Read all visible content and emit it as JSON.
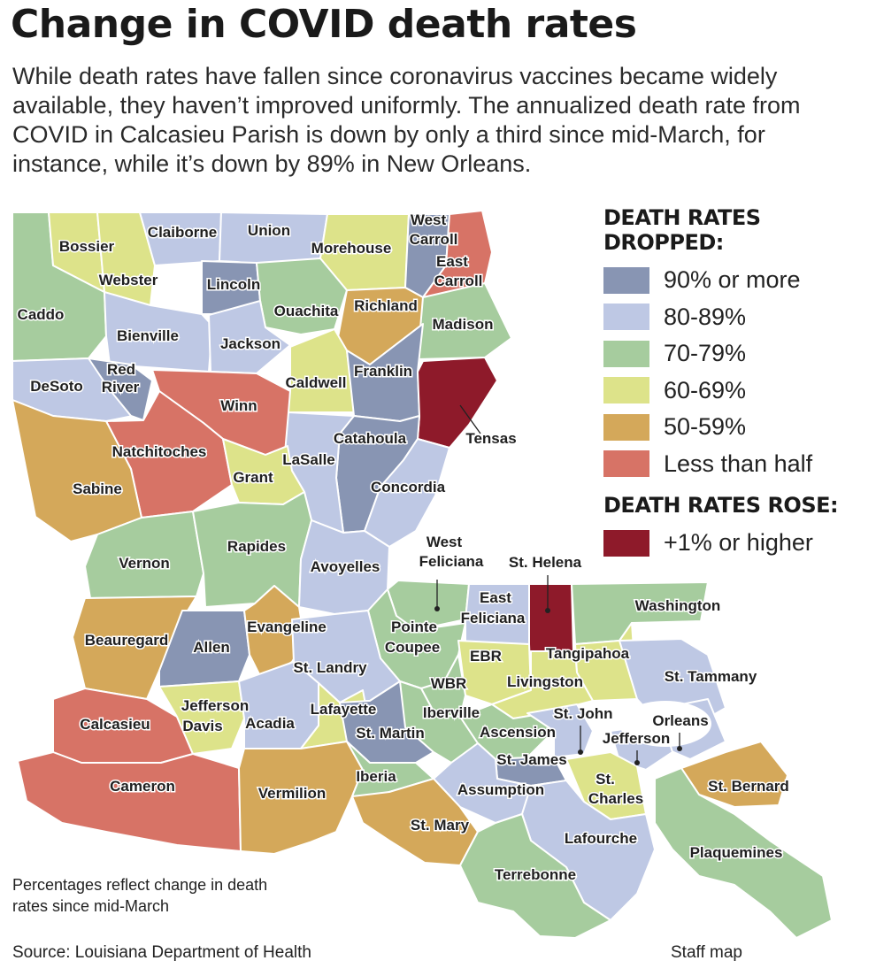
{
  "header": {
    "title": "Change in COVID death rates",
    "subtitle": "While death rates have fallen since coronavirus vaccines became widely available, they haven’t improved uniformly. The annualized death rate from COVID in Calcasieu Parish is down by only a third since mid-March, for instance, while it’s down by 89% in New Orleans."
  },
  "legend": {
    "dropped_title": "DEATH RATES DROPPED:",
    "dropped": [
      {
        "key": "90",
        "label": "90% or more",
        "color": "#8895b3"
      },
      {
        "key": "80",
        "label": "80-89%",
        "color": "#bec8e4"
      },
      {
        "key": "70",
        "label": "70-79%",
        "color": "#a6cc9e"
      },
      {
        "key": "60",
        "label": "60-69%",
        "color": "#dde38a"
      },
      {
        "key": "50",
        "label": "50-59%",
        "color": "#d4a85a"
      },
      {
        "key": "half",
        "label": "Less than half",
        "color": "#d77366"
      }
    ],
    "rose_title": "DEATH RATES ROSE:",
    "rose": [
      {
        "key": "rose",
        "label": "+1% or higher",
        "color": "#8e1a2a"
      }
    ]
  },
  "parishes": [
    {
      "id": "caddo",
      "label": "Caddo",
      "category": "70"
    },
    {
      "id": "bossier",
      "label": "Bossier",
      "category": "60"
    },
    {
      "id": "webster",
      "label": "Webster",
      "category": "60"
    },
    {
      "id": "claiborne",
      "label": "Claiborne",
      "category": "80"
    },
    {
      "id": "union",
      "label": "Union",
      "category": "80"
    },
    {
      "id": "morehouse",
      "label": "Morehouse",
      "category": "60"
    },
    {
      "id": "west-carroll",
      "label": "West Carroll",
      "category": "90"
    },
    {
      "id": "east-carroll",
      "label": "East Carroll",
      "category": "half"
    },
    {
      "id": "lincoln",
      "label": "Lincoln",
      "category": "90"
    },
    {
      "id": "ouachita",
      "label": "Ouachita",
      "category": "70"
    },
    {
      "id": "richland",
      "label": "Richland",
      "category": "50"
    },
    {
      "id": "madison",
      "label": "Madison",
      "category": "70"
    },
    {
      "id": "bienville",
      "label": "Bienville",
      "category": "80"
    },
    {
      "id": "jackson",
      "label": "Jackson",
      "category": "80"
    },
    {
      "id": "desoto",
      "label": "DeSoto",
      "category": "80"
    },
    {
      "id": "red-river",
      "label": "Red River",
      "category": "90"
    },
    {
      "id": "winn",
      "label": "Winn",
      "category": "half"
    },
    {
      "id": "caldwell",
      "label": "Caldwell",
      "category": "60"
    },
    {
      "id": "franklin",
      "label": "Franklin",
      "category": "90"
    },
    {
      "id": "tensas",
      "label": "Tensas",
      "category": "rose"
    },
    {
      "id": "natchitoches",
      "label": "Natchitoches",
      "category": "half"
    },
    {
      "id": "catahoula",
      "label": "Catahoula",
      "category": "90"
    },
    {
      "id": "lasalle",
      "label": "LaSalle",
      "category": "80"
    },
    {
      "id": "grant",
      "label": "Grant",
      "category": "60"
    },
    {
      "id": "concordia",
      "label": "Concordia",
      "category": "80"
    },
    {
      "id": "sabine",
      "label": "Sabine",
      "category": "50"
    },
    {
      "id": "vernon",
      "label": "Vernon",
      "category": "70"
    },
    {
      "id": "rapides",
      "label": "Rapides",
      "category": "70"
    },
    {
      "id": "avoyelles",
      "label": "Avoyelles",
      "category": "80"
    },
    {
      "id": "west-feliciana",
      "label": "West Feliciana",
      "category": "70"
    },
    {
      "id": "east-feliciana",
      "label": "East Feliciana",
      "category": "80"
    },
    {
      "id": "st-helena",
      "label": "St. Helena",
      "category": "rose"
    },
    {
      "id": "washington",
      "label": "Washington",
      "category": "70"
    },
    {
      "id": "beauregard",
      "label": "Beauregard",
      "category": "50"
    },
    {
      "id": "allen",
      "label": "Allen",
      "category": "90"
    },
    {
      "id": "evangeline",
      "label": "Evangeline",
      "category": "50"
    },
    {
      "id": "pointe-coupee",
      "label": "Pointe Coupee",
      "category": "70"
    },
    {
      "id": "ebr",
      "label": "EBR",
      "category": "60"
    },
    {
      "id": "tangipahoa",
      "label": "Tangipahoa",
      "category": "60"
    },
    {
      "id": "st-landry",
      "label": "St. Landry",
      "category": "80"
    },
    {
      "id": "wbr",
      "label": "WBR",
      "category": "70"
    },
    {
      "id": "livingston",
      "label": "Livingston",
      "category": "60"
    },
    {
      "id": "st-tammany",
      "label": "St. Tammany",
      "category": "80"
    },
    {
      "id": "calcasieu",
      "label": "Calcasieu",
      "category": "half"
    },
    {
      "id": "jefferson-davis",
      "label": "Jefferson Davis",
      "category": "60"
    },
    {
      "id": "acadia",
      "label": "Acadia",
      "category": "80"
    },
    {
      "id": "lafayette",
      "label": "Lafayette",
      "category": "60"
    },
    {
      "id": "st-martin",
      "label": "St. Martin",
      "category": "90"
    },
    {
      "id": "iberville",
      "label": "Iberville",
      "category": "70"
    },
    {
      "id": "ascension",
      "label": "Ascension",
      "category": "70"
    },
    {
      "id": "st-john",
      "label": "St. John",
      "category": "80"
    },
    {
      "id": "orleans",
      "label": "Orleans",
      "category": "80"
    },
    {
      "id": "jefferson",
      "label": "Jefferson",
      "category": "80"
    },
    {
      "id": "st-james",
      "label": "St. James",
      "category": "90"
    },
    {
      "id": "cameron",
      "label": "Cameron",
      "category": "half"
    },
    {
      "id": "vermilion",
      "label": "Vermilion",
      "category": "50"
    },
    {
      "id": "iberia",
      "label": "Iberia",
      "category": "70"
    },
    {
      "id": "assumption",
      "label": "Assumption",
      "category": "80"
    },
    {
      "id": "st-charles",
      "label": "St. Charles",
      "category": "60"
    },
    {
      "id": "st-bernard",
      "label": "St. Bernard",
      "category": "50"
    },
    {
      "id": "st-mary",
      "label": "St. Mary",
      "category": "50"
    },
    {
      "id": "lafourche",
      "label": "Lafourche",
      "category": "80"
    },
    {
      "id": "plaquemines",
      "label": "Plaquemines",
      "category": "70"
    },
    {
      "id": "terrebonne",
      "label": "Terrebonne",
      "category": "70"
    }
  ],
  "footer": {
    "note": "Percentages reflect change in death rates since mid-March",
    "source": "Source: Louisiana Department of Health",
    "credit": "Staff map"
  }
}
